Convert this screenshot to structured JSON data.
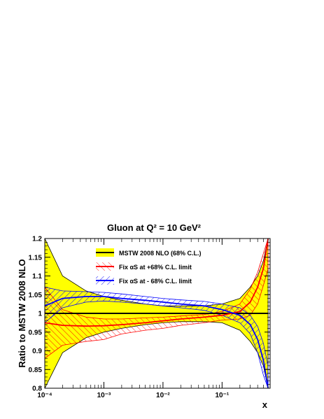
{
  "chart_data": {
    "type": "line",
    "title": "Gluon at Q² = 10 GeV²",
    "xlabel": "x",
    "ylabel": "Ratio to MSTW 2008 NLO",
    "x_scale": "log",
    "xlim": [
      0.0001,
      0.65
    ],
    "ylim": [
      0.8,
      1.2
    ],
    "x_tick_labels": [
      "10⁻⁴",
      "10⁻³",
      "10⁻²",
      "10⁻¹"
    ],
    "y_tick_labels": [
      "0.8",
      "0.85",
      "0.9",
      "0.95",
      "1",
      "1.05",
      "1.1",
      "1.15",
      "1.2"
    ],
    "grid": false,
    "legend_placement": "top-center",
    "x": [
      0.0001,
      0.0002,
      0.0005,
      0.001,
      0.002,
      0.005,
      0.01,
      0.02,
      0.05,
      0.1,
      0.2,
      0.3,
      0.4,
      0.5,
      0.6
    ],
    "series": [
      {
        "name": "MSTW 2008 NLO (68% C.L.)",
        "central": [
          1,
          1,
          1,
          1,
          1,
          1,
          1,
          1,
          1,
          1,
          1,
          1,
          1,
          1,
          1
        ],
        "upper": [
          1.2,
          1.1,
          1.06,
          1.045,
          1.035,
          1.025,
          1.02,
          1.02,
          1.02,
          1.025,
          1.04,
          1.07,
          1.1,
          1.14,
          1.2
        ],
        "lower": [
          0.8,
          0.895,
          0.935,
          0.95,
          0.96,
          0.97,
          0.975,
          0.978,
          0.978,
          0.975,
          0.955,
          0.925,
          0.895,
          0.86,
          0.8
        ],
        "color": "#ffff00",
        "line_color": "#000000"
      },
      {
        "name": "Fix αS at +68% C.L. limit",
        "central": [
          0.975,
          0.968,
          0.966,
          0.967,
          0.97,
          0.975,
          0.98,
          0.985,
          0.99,
          0.995,
          1.005,
          1.03,
          1.07,
          1.12,
          1.2
        ],
        "upper": [
          1.07,
          1.01,
          0.99,
          0.985,
          0.985,
          0.988,
          0.99,
          0.993,
          0.997,
          1.005,
          1.025,
          1.065,
          1.11,
          1.16,
          1.2
        ],
        "lower": [
          0.88,
          0.915,
          0.925,
          0.93,
          0.945,
          0.955,
          0.96,
          0.968,
          0.975,
          0.982,
          0.985,
          0.995,
          1.025,
          1.075,
          1.12
        ],
        "color": "#ff0000"
      },
      {
        "name": "Fix αS at - 68% C.L. limit",
        "central": [
          1.02,
          1.04,
          1.045,
          1.045,
          1.04,
          1.035,
          1.03,
          1.025,
          1.02,
          1.01,
          0.995,
          0.97,
          0.93,
          0.875,
          0.8
        ],
        "upper": [
          1.07,
          1.06,
          1.058,
          1.056,
          1.052,
          1.045,
          1.04,
          1.036,
          1.032,
          1.025,
          1.015,
          0.995,
          0.965,
          0.92,
          0.86
        ],
        "lower": [
          0.975,
          1.015,
          1.03,
          1.033,
          1.03,
          1.025,
          1.02,
          1.015,
          1.008,
          0.995,
          0.975,
          0.945,
          0.895,
          0.835,
          0.8
        ],
        "color": "#0000ff"
      }
    ]
  }
}
